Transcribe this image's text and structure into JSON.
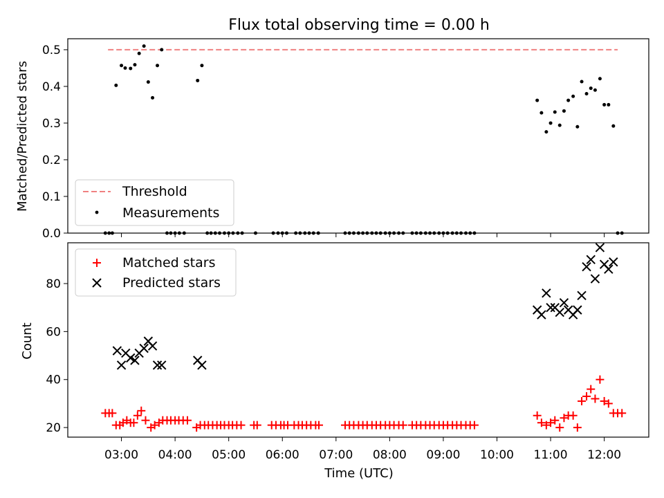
{
  "chart_data": [
    {
      "type": "scatter",
      "title": "Flux total observing time = 0.00 h",
      "ylabel": "Matched/Predicted stars",
      "xlabel": "",
      "ylim": [
        0,
        0.53
      ],
      "yticks": [
        "0.0",
        "0.1",
        "0.2",
        "0.3",
        "0.4",
        "0.5"
      ],
      "legend_position": "lower-left",
      "threshold": {
        "name": "Threshold",
        "value": 0.5,
        "x_range": [
          2.75,
          12.25
        ],
        "color": "#f08080"
      },
      "series": [
        {
          "name": "Measurements",
          "color": "#000000",
          "points": [
            [
              2.7,
              0
            ],
            [
              2.77,
              0
            ],
            [
              2.83,
              0
            ],
            [
              2.9,
              0.403
            ],
            [
              3.0,
              0.457
            ],
            [
              3.07,
              0.45
            ],
            [
              3.17,
              0.449
            ],
            [
              3.25,
              0.459
            ],
            [
              3.33,
              0.49
            ],
            [
              3.42,
              0.51
            ],
            [
              3.5,
              0.412
            ],
            [
              3.58,
              0.369
            ],
            [
              3.67,
              0.457
            ],
            [
              3.75,
              0.5
            ],
            [
              3.85,
              0
            ],
            [
              3.92,
              0
            ],
            [
              4.0,
              0
            ],
            [
              4.08,
              0
            ],
            [
              4.17,
              0
            ],
            [
              4.42,
              0.416
            ],
            [
              4.5,
              0.457
            ],
            [
              4.6,
              0
            ],
            [
              4.67,
              0
            ],
            [
              4.75,
              0
            ],
            [
              4.83,
              0
            ],
            [
              4.92,
              0
            ],
            [
              5.0,
              0
            ],
            [
              5.08,
              0
            ],
            [
              5.17,
              0
            ],
            [
              5.25,
              0
            ],
            [
              5.5,
              0
            ],
            [
              5.83,
              0
            ],
            [
              5.92,
              0
            ],
            [
              6.0,
              0
            ],
            [
              6.08,
              0
            ],
            [
              6.25,
              0
            ],
            [
              6.33,
              0
            ],
            [
              6.42,
              0
            ],
            [
              6.5,
              0
            ],
            [
              6.58,
              0
            ],
            [
              6.67,
              0
            ],
            [
              7.17,
              0
            ],
            [
              7.25,
              0
            ],
            [
              7.33,
              0
            ],
            [
              7.42,
              0
            ],
            [
              7.5,
              0
            ],
            [
              7.58,
              0
            ],
            [
              7.67,
              0
            ],
            [
              7.75,
              0
            ],
            [
              7.83,
              0
            ],
            [
              7.92,
              0
            ],
            [
              8.0,
              0
            ],
            [
              8.08,
              0
            ],
            [
              8.17,
              0
            ],
            [
              8.25,
              0
            ],
            [
              8.42,
              0
            ],
            [
              8.5,
              0
            ],
            [
              8.58,
              0
            ],
            [
              8.67,
              0
            ],
            [
              8.75,
              0
            ],
            [
              8.83,
              0
            ],
            [
              8.92,
              0
            ],
            [
              9.0,
              0
            ],
            [
              9.08,
              0
            ],
            [
              9.17,
              0
            ],
            [
              9.25,
              0
            ],
            [
              9.33,
              0
            ],
            [
              9.42,
              0
            ],
            [
              9.5,
              0
            ],
            [
              9.58,
              0
            ],
            [
              10.75,
              0.362
            ],
            [
              10.83,
              0.328
            ],
            [
              10.92,
              0.276
            ],
            [
              11.0,
              0.3
            ],
            [
              11.08,
              0.33
            ],
            [
              11.17,
              0.294
            ],
            [
              11.25,
              0.333
            ],
            [
              11.33,
              0.362
            ],
            [
              11.42,
              0.373
            ],
            [
              11.5,
              0.29
            ],
            [
              11.58,
              0.413
            ],
            [
              11.67,
              0.38
            ],
            [
              11.75,
              0.395
            ],
            [
              11.83,
              0.39
            ],
            [
              11.92,
              0.421
            ],
            [
              12.0,
              0.35
            ],
            [
              12.08,
              0.35
            ],
            [
              12.17,
              0.292
            ],
            [
              12.25,
              0
            ],
            [
              12.33,
              0
            ]
          ]
        }
      ]
    },
    {
      "type": "scatter",
      "title": "",
      "ylabel": "Count",
      "xlabel": "Time (UTC)",
      "xlim": [
        2.0,
        12.83
      ],
      "xticks": [
        "03:00",
        "04:00",
        "05:00",
        "06:00",
        "07:00",
        "08:00",
        "09:00",
        "10:00",
        "11:00",
        "12:00"
      ],
      "ylim": [
        16,
        97
      ],
      "yticks": [
        "20",
        "40",
        "60",
        "80"
      ],
      "legend_position": "upper-left",
      "series": [
        {
          "name": "Matched stars",
          "marker": "plus",
          "color": "#ff0000",
          "points": [
            [
              2.7,
              26
            ],
            [
              2.77,
              26
            ],
            [
              2.83,
              26
            ],
            [
              2.9,
              21
            ],
            [
              2.97,
              21
            ],
            [
              3.03,
              22
            ],
            [
              3.1,
              23
            ],
            [
              3.17,
              22
            ],
            [
              3.23,
              22
            ],
            [
              3.3,
              25
            ],
            [
              3.37,
              27
            ],
            [
              3.45,
              23
            ],
            [
              3.55,
              20
            ],
            [
              3.62,
              21
            ],
            [
              3.7,
              22
            ],
            [
              3.77,
              23
            ],
            [
              3.85,
              23
            ],
            [
              3.92,
              23
            ],
            [
              4.0,
              23
            ],
            [
              4.07,
              23
            ],
            [
              4.15,
              23
            ],
            [
              4.23,
              23
            ],
            [
              4.4,
              20
            ],
            [
              4.47,
              21
            ],
            [
              4.55,
              21
            ],
            [
              4.62,
              21
            ],
            [
              4.7,
              21
            ],
            [
              4.78,
              21
            ],
            [
              4.85,
              21
            ],
            [
              4.92,
              21
            ],
            [
              5.0,
              21
            ],
            [
              5.07,
              21
            ],
            [
              5.15,
              21
            ],
            [
              5.23,
              21
            ],
            [
              5.47,
              21
            ],
            [
              5.53,
              21
            ],
            [
              5.8,
              21
            ],
            [
              5.88,
              21
            ],
            [
              5.97,
              21
            ],
            [
              6.03,
              21
            ],
            [
              6.1,
              21
            ],
            [
              6.22,
              21
            ],
            [
              6.3,
              21
            ],
            [
              6.37,
              21
            ],
            [
              6.45,
              21
            ],
            [
              6.53,
              21
            ],
            [
              6.62,
              21
            ],
            [
              6.68,
              21
            ],
            [
              7.17,
              21
            ],
            [
              7.25,
              21
            ],
            [
              7.33,
              21
            ],
            [
              7.42,
              21
            ],
            [
              7.5,
              21
            ],
            [
              7.58,
              21
            ],
            [
              7.67,
              21
            ],
            [
              7.75,
              21
            ],
            [
              7.83,
              21
            ],
            [
              7.92,
              21
            ],
            [
              8.0,
              21
            ],
            [
              8.08,
              21
            ],
            [
              8.17,
              21
            ],
            [
              8.25,
              21
            ],
            [
              8.42,
              21
            ],
            [
              8.5,
              21
            ],
            [
              8.58,
              21
            ],
            [
              8.67,
              21
            ],
            [
              8.75,
              21
            ],
            [
              8.83,
              21
            ],
            [
              8.92,
              21
            ],
            [
              9.0,
              21
            ],
            [
              9.08,
              21
            ],
            [
              9.17,
              21
            ],
            [
              9.25,
              21
            ],
            [
              9.33,
              21
            ],
            [
              9.42,
              21
            ],
            [
              9.5,
              21
            ],
            [
              9.58,
              21
            ],
            [
              10.75,
              25
            ],
            [
              10.83,
              22
            ],
            [
              10.92,
              21
            ],
            [
              11.0,
              22
            ],
            [
              11.08,
              23
            ],
            [
              11.17,
              20
            ],
            [
              11.25,
              24
            ],
            [
              11.33,
              25
            ],
            [
              11.42,
              25
            ],
            [
              11.5,
              20
            ],
            [
              11.58,
              31
            ],
            [
              11.67,
              33
            ],
            [
              11.75,
              36
            ],
            [
              11.83,
              32
            ],
            [
              11.92,
              40
            ],
            [
              12.0,
              31
            ],
            [
              12.08,
              30
            ],
            [
              12.17,
              26
            ],
            [
              12.25,
              26
            ],
            [
              12.33,
              26
            ]
          ]
        },
        {
          "name": "Predicted stars",
          "marker": "x",
          "color": "#000000",
          "points": [
            [
              2.92,
              52
            ],
            [
              3.0,
              46
            ],
            [
              3.08,
              51
            ],
            [
              3.17,
              49
            ],
            [
              3.25,
              48
            ],
            [
              3.33,
              51
            ],
            [
              3.42,
              53
            ],
            [
              3.5,
              56
            ],
            [
              3.58,
              54
            ],
            [
              3.67,
              46
            ],
            [
              3.75,
              46
            ],
            [
              4.42,
              48
            ],
            [
              4.5,
              46
            ],
            [
              10.75,
              69
            ],
            [
              10.83,
              67
            ],
            [
              10.92,
              76
            ],
            [
              11.0,
              70
            ],
            [
              11.08,
              70
            ],
            [
              11.17,
              68
            ],
            [
              11.25,
              72
            ],
            [
              11.33,
              69
            ],
            [
              11.42,
              67
            ],
            [
              11.5,
              69
            ],
            [
              11.58,
              75
            ],
            [
              11.67,
              87
            ],
            [
              11.75,
              90
            ],
            [
              11.83,
              82
            ],
            [
              11.92,
              95
            ],
            [
              12.0,
              88
            ],
            [
              12.08,
              86
            ],
            [
              12.17,
              89
            ]
          ]
        }
      ]
    }
  ]
}
